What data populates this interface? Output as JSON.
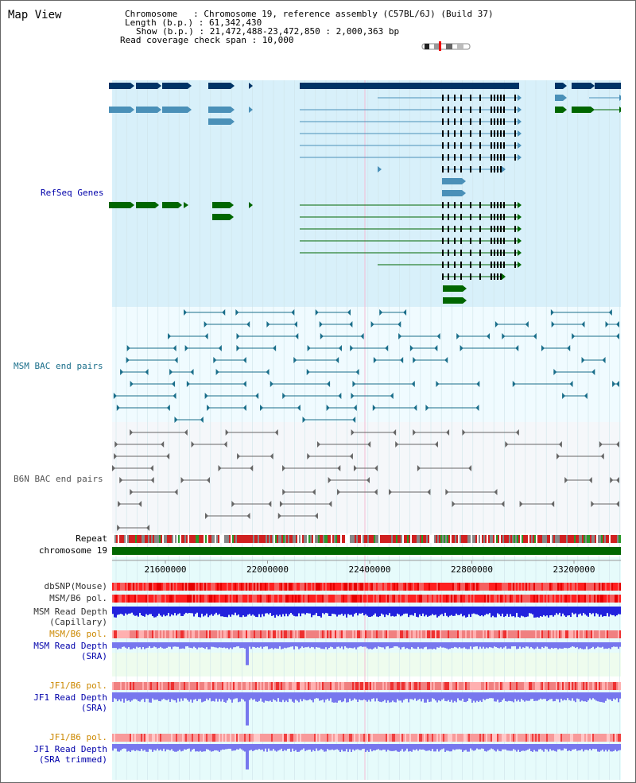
{
  "title": "Map View",
  "info": {
    "chromosome": "Chromosome   : Chromosome 19, reference assembly (C57BL/6J) (Build 37)",
    "length": "Length (b.p.) : 61,342,430",
    "show": "Show (b.p.) : 21,472,488-23,472,850 : 2,000,363 bp",
    "coverage": "Read coverage check span : 10,000"
  },
  "tracks": {
    "refseq": "RefSeq Genes",
    "msm_bac": "MSM BAC end pairs",
    "b6n_bac": "B6N BAC end pairs",
    "repeat": "Repeat",
    "chrom": "chromosome 19",
    "dbsnp": "dbSNP(Mouse)",
    "msm_b6_pol": "MSM/B6 pol.",
    "msm_depth_cap_1": "MSM Read Depth",
    "msm_depth_cap_2": "(Capillary)",
    "msm_b6_pol2": "MSM/B6 pol.",
    "msm_depth_sra_1": "MSM Read Depth",
    "msm_depth_sra_2": "(SRA)",
    "jf1_b6_pol": "JF1/B6 pol.",
    "jf1_depth_sra_1": "JF1 Read Depth",
    "jf1_depth_sra_2": "(SRA)",
    "jf1_b6_pol2": "JF1/B6 pol.",
    "jf1_depth_trim_1": "JF1 Read Depth",
    "jf1_depth_trim_2": "(SRA trimmed)"
  },
  "axis": {
    "ticks": [
      "21600000",
      "22000000",
      "22400000",
      "22800000",
      "23200000"
    ]
  },
  "colors": {
    "refseq_dark": "#003366",
    "refseq_light": "#4a90b8",
    "refseq_green": "#006600",
    "msm_bac": "#1a6e8a",
    "b6n_bac": "#666666",
    "label_blue": "#0000aa",
    "label_orange": "#cc8800",
    "depth_blue": "#2222dd",
    "depth_light": "#7777ee"
  }
}
